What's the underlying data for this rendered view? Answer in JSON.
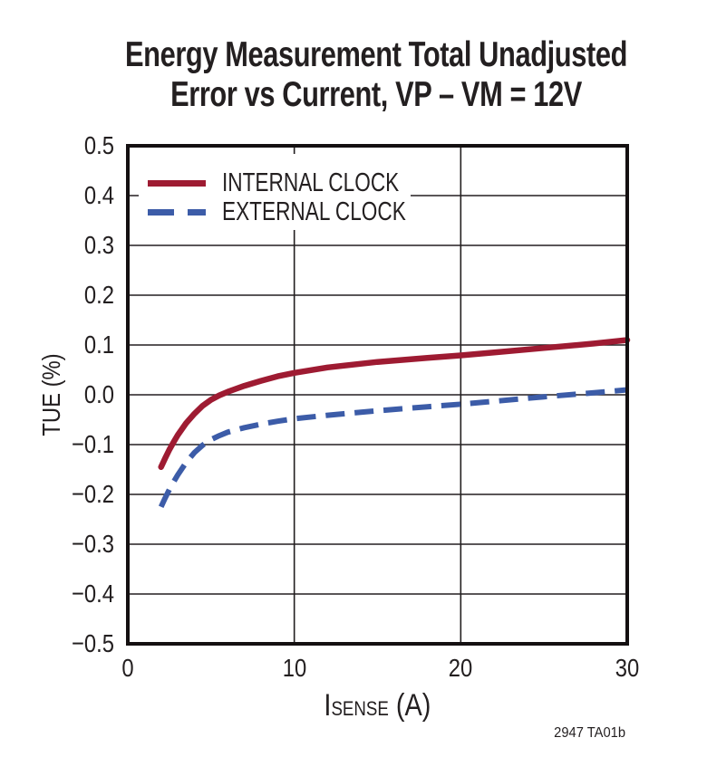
{
  "footnote": "2947 TA01b",
  "chart_data": {
    "type": "line",
    "title": "Energy Measurement Total Unadjusted Error vs Current, VP – VM = 12V",
    "title_line1": "Energy Measurement Total Unadjusted",
    "title_line2": "Error vs Current, VP – VM = 12V",
    "ylabel": "TUE (%)",
    "xlabel_main": "I",
    "xlabel_sub": "SENSE",
    "xlabel_unit": " (A)",
    "xlim": [
      0,
      30
    ],
    "ylim": [
      -0.5,
      0.5
    ],
    "x_tick_values": [
      0,
      10,
      20,
      30
    ],
    "x_tick_labels": [
      "0",
      "10",
      "20",
      "30"
    ],
    "y_tick_values": [
      0.5,
      0.4,
      0.3,
      0.2,
      0.1,
      0.0,
      -0.1,
      -0.2,
      -0.3,
      -0.4,
      -0.5
    ],
    "y_tick_labels": [
      "0.5",
      "0.4",
      "0.3",
      "0.2",
      "0.1",
      "0.0",
      "−0.1",
      "−0.2",
      "−0.3",
      "−0.4",
      "−0.5"
    ],
    "x_gridlines": [
      10,
      20
    ],
    "y_gridlines": [
      0.4,
      0.3,
      0.2,
      0.1,
      0.0,
      -0.1,
      -0.2,
      -0.3,
      -0.4
    ],
    "grid": true,
    "legend_position": "top-left-inside",
    "x": [
      2,
      2.25,
      2.5,
      2.75,
      3,
      3.5,
      4,
      4.5,
      5,
      5.5,
      6,
      7,
      8,
      9,
      10,
      12,
      15,
      18,
      20,
      22,
      25,
      28,
      30
    ],
    "series": [
      {
        "name": "INTERNAL CLOCK",
        "line_style": "solid",
        "color": "#9E1B32",
        "values": [
          -0.145,
          -0.127,
          -0.11,
          -0.095,
          -0.081,
          -0.057,
          -0.038,
          -0.022,
          -0.01,
          -0.001,
          0.006,
          0.018,
          0.028,
          0.037,
          0.044,
          0.055,
          0.066,
          0.074,
          0.079,
          0.085,
          0.094,
          0.103,
          0.11
        ]
      },
      {
        "name": "EXTERNAL CLOCK",
        "line_style": "dashed",
        "color": "#3C5CA8",
        "values": [
          -0.225,
          -0.207,
          -0.19,
          -0.175,
          -0.161,
          -0.136,
          -0.116,
          -0.101,
          -0.09,
          -0.082,
          -0.075,
          -0.066,
          -0.059,
          -0.053,
          -0.048,
          -0.041,
          -0.032,
          -0.024,
          -0.019,
          -0.013,
          -0.004,
          0.004,
          0.01
        ]
      }
    ],
    "colors": {
      "grid": "#231F20",
      "frame": "#141011",
      "text": "#231F20",
      "background": "#FFFFFF"
    }
  }
}
